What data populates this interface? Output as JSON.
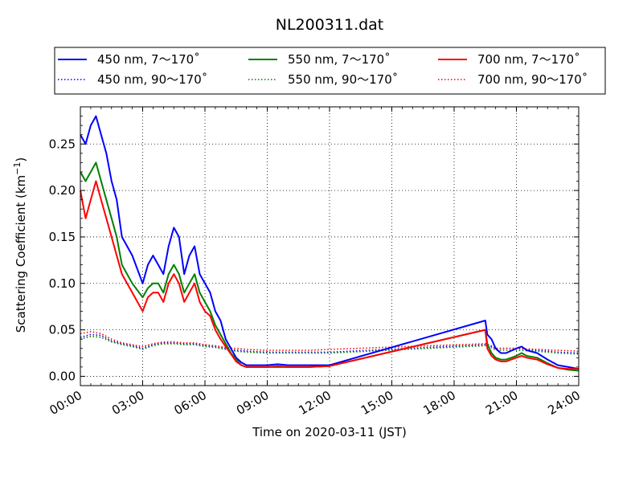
{
  "chart_data": {
    "type": "line",
    "title": "NL200311.dat",
    "xlabel": "Time on 2020-03-11 (JST)",
    "ylabel": "Scattering Coefficient (km",
    "ylabel_sup": "−1",
    "ylabel_close": ")",
    "xlim_hours": [
      0,
      24
    ],
    "ylim": [
      -0.01,
      0.29
    ],
    "x_ticks": [
      "00:00",
      "03:00",
      "06:00",
      "09:00",
      "12:00",
      "15:00",
      "18:00",
      "21:00",
      "24:00"
    ],
    "y_ticks": [
      "0.00",
      "0.05",
      "0.10",
      "0.15",
      "0.20",
      "0.25"
    ],
    "grid": true,
    "legend_position": "top-center, above plot",
    "series": [
      {
        "name": "450 nm, 7～170˚",
        "color": "#0000ff",
        "style": "solid",
        "x_hours": [
          0,
          0.25,
          0.5,
          0.75,
          1,
          1.25,
          1.5,
          1.75,
          2,
          2.5,
          3,
          3.25,
          3.5,
          3.75,
          4,
          4.25,
          4.5,
          4.75,
          5,
          5.25,
          5.5,
          5.75,
          6,
          6.25,
          6.5,
          6.75,
          7,
          7.25,
          7.5,
          7.75,
          8,
          8.5,
          9,
          9.5,
          10,
          11,
          12,
          19.5,
          19.6,
          19.8,
          20,
          20.25,
          20.5,
          21,
          21.25,
          21.5,
          22,
          22.5,
          23,
          23.5,
          24
        ],
        "y": [
          0.26,
          0.25,
          0.27,
          0.28,
          0.26,
          0.24,
          0.21,
          0.19,
          0.15,
          0.13,
          0.1,
          0.12,
          0.13,
          0.12,
          0.11,
          0.14,
          0.16,
          0.15,
          0.11,
          0.13,
          0.14,
          0.11,
          0.1,
          0.09,
          0.07,
          0.06,
          0.04,
          0.03,
          0.02,
          0.015,
          0.012,
          0.012,
          0.012,
          0.013,
          0.012,
          0.012,
          0.012,
          0.06,
          0.045,
          0.04,
          0.03,
          0.025,
          0.025,
          0.03,
          0.032,
          0.028,
          0.025,
          0.018,
          0.012,
          0.01,
          0.008
        ]
      },
      {
        "name": "550 nm, 7～170˚",
        "color": "#008000",
        "style": "solid",
        "x_hours": [
          0,
          0.25,
          0.5,
          0.75,
          1,
          1.25,
          1.5,
          1.75,
          2,
          2.5,
          3,
          3.25,
          3.5,
          3.75,
          4,
          4.25,
          4.5,
          4.75,
          5,
          5.25,
          5.5,
          5.75,
          6,
          6.25,
          6.5,
          6.75,
          7,
          7.25,
          7.5,
          7.75,
          8,
          8.5,
          9,
          9.5,
          10,
          11,
          12,
          19.5,
          19.6,
          19.8,
          20,
          20.25,
          20.5,
          21,
          21.25,
          21.5,
          22,
          22.5,
          23,
          23.5,
          24
        ],
        "y": [
          0.22,
          0.21,
          0.22,
          0.23,
          0.21,
          0.19,
          0.17,
          0.15,
          0.12,
          0.1,
          0.085,
          0.095,
          0.1,
          0.1,
          0.09,
          0.11,
          0.12,
          0.11,
          0.09,
          0.1,
          0.11,
          0.09,
          0.08,
          0.07,
          0.055,
          0.045,
          0.035,
          0.025,
          0.018,
          0.012,
          0.01,
          0.01,
          0.01,
          0.011,
          0.01,
          0.01,
          0.011,
          0.05,
          0.035,
          0.025,
          0.02,
          0.018,
          0.018,
          0.022,
          0.025,
          0.022,
          0.02,
          0.014,
          0.009,
          0.007,
          0.006
        ]
      },
      {
        "name": "700 nm, 7～170˚",
        "color": "#ff0000",
        "style": "solid",
        "x_hours": [
          0,
          0.25,
          0.5,
          0.75,
          1,
          1.25,
          1.5,
          1.75,
          2,
          2.5,
          3,
          3.25,
          3.5,
          3.75,
          4,
          4.25,
          4.5,
          4.75,
          5,
          5.25,
          5.5,
          5.75,
          6,
          6.25,
          6.5,
          6.75,
          7,
          7.25,
          7.5,
          7.75,
          8,
          8.5,
          9,
          9.5,
          10,
          11,
          12,
          19.5,
          19.6,
          19.8,
          20,
          20.25,
          20.5,
          21,
          21.25,
          21.5,
          22,
          22.5,
          23,
          23.5,
          24
        ],
        "y": [
          0.2,
          0.17,
          0.19,
          0.21,
          0.19,
          0.17,
          0.15,
          0.13,
          0.11,
          0.09,
          0.07,
          0.085,
          0.09,
          0.09,
          0.08,
          0.1,
          0.11,
          0.1,
          0.08,
          0.09,
          0.1,
          0.08,
          0.07,
          0.065,
          0.05,
          0.04,
          0.032,
          0.024,
          0.016,
          0.012,
          0.01,
          0.01,
          0.01,
          0.01,
          0.01,
          0.01,
          0.011,
          0.05,
          0.03,
          0.022,
          0.018,
          0.016,
          0.016,
          0.02,
          0.022,
          0.02,
          0.018,
          0.013,
          0.009,
          0.008,
          0.008
        ]
      },
      {
        "name": "450 nm, 90～170˚",
        "color": "#0000ff",
        "style": "dotted",
        "x_hours": [
          0,
          0.5,
          1,
          1.5,
          2,
          2.5,
          3,
          3.5,
          4,
          4.5,
          5,
          5.5,
          6,
          6.5,
          7,
          7.5,
          8,
          9,
          10,
          11,
          12,
          19.5,
          19.8,
          20,
          21,
          22,
          23,
          24
        ],
        "y": [
          0.042,
          0.045,
          0.044,
          0.038,
          0.035,
          0.033,
          0.03,
          0.034,
          0.036,
          0.036,
          0.035,
          0.035,
          0.033,
          0.032,
          0.03,
          0.028,
          0.027,
          0.026,
          0.026,
          0.026,
          0.026,
          0.034,
          0.032,
          0.03,
          0.03,
          0.028,
          0.026,
          0.025
        ]
      },
      {
        "name": "550 nm, 90～170˚",
        "color": "#008000",
        "style": "dotted",
        "x_hours": [
          0,
          0.5,
          1,
          1.5,
          2,
          2.5,
          3,
          3.5,
          4,
          4.5,
          5,
          5.5,
          6,
          6.5,
          7,
          7.5,
          8,
          9,
          10,
          11,
          12,
          19.5,
          19.8,
          20,
          21,
          22,
          23,
          24
        ],
        "y": [
          0.04,
          0.043,
          0.042,
          0.037,
          0.034,
          0.032,
          0.029,
          0.033,
          0.035,
          0.035,
          0.034,
          0.034,
          0.032,
          0.031,
          0.029,
          0.027,
          0.026,
          0.025,
          0.025,
          0.025,
          0.025,
          0.033,
          0.031,
          0.028,
          0.028,
          0.027,
          0.025,
          0.024
        ]
      },
      {
        "name": "700 nm, 90～170˚",
        "color": "#ff0000",
        "style": "dotted",
        "x_hours": [
          0,
          0.5,
          1,
          1.5,
          2,
          2.5,
          3,
          3.5,
          4,
          4.5,
          5,
          5.5,
          6,
          6.5,
          7,
          7.5,
          8,
          9,
          10,
          11,
          12,
          19.5,
          19.8,
          20,
          21,
          22,
          23,
          24
        ],
        "y": [
          0.046,
          0.048,
          0.046,
          0.04,
          0.036,
          0.034,
          0.032,
          0.035,
          0.037,
          0.037,
          0.036,
          0.036,
          0.034,
          0.033,
          0.031,
          0.03,
          0.029,
          0.028,
          0.028,
          0.028,
          0.029,
          0.035,
          0.033,
          0.03,
          0.03,
          0.029,
          0.028,
          0.027
        ]
      }
    ]
  }
}
